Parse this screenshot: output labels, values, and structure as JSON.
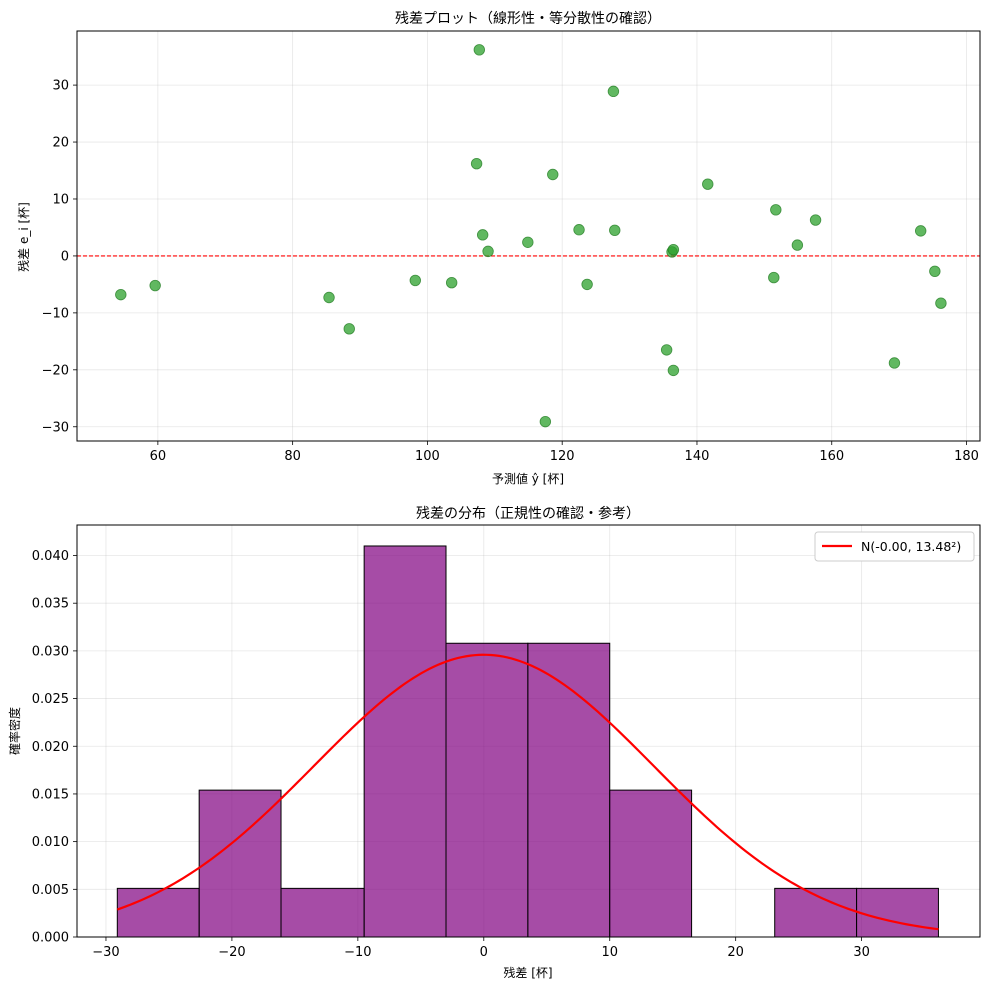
{
  "chart_data": [
    {
      "type": "scatter",
      "title": "残差プロット（線形性・等分散性の確認）",
      "xlabel": "予測値 ŷ [杯]",
      "ylabel": "残差 e_i [杯]",
      "xlim": [
        48,
        182
      ],
      "ylim": [
        -32.5,
        39.5
      ],
      "xticks": [
        60,
        80,
        100,
        120,
        140,
        160,
        180
      ],
      "yticks": [
        -30,
        -20,
        -10,
        0,
        10,
        20,
        30
      ],
      "grid": true,
      "marker_color": "#2ca02c",
      "reference_line": {
        "y": 0,
        "color": "#ff0000",
        "style": "dashed"
      },
      "points": [
        {
          "x": 54.5,
          "y": -6.8
        },
        {
          "x": 59.6,
          "y": -5.2
        },
        {
          "x": 85.4,
          "y": -7.3
        },
        {
          "x": 88.4,
          "y": -12.8
        },
        {
          "x": 98.2,
          "y": -4.3
        },
        {
          "x": 103.6,
          "y": -4.7
        },
        {
          "x": 107.3,
          "y": 16.2
        },
        {
          "x": 107.7,
          "y": 36.2
        },
        {
          "x": 108.2,
          "y": 3.7
        },
        {
          "x": 109.0,
          "y": 0.8
        },
        {
          "x": 114.9,
          "y": 2.4
        },
        {
          "x": 117.5,
          "y": -29.1
        },
        {
          "x": 118.6,
          "y": 14.3
        },
        {
          "x": 122.5,
          "y": 4.6
        },
        {
          "x": 123.7,
          "y": -5.0
        },
        {
          "x": 127.6,
          "y": 28.9
        },
        {
          "x": 127.8,
          "y": 4.5
        },
        {
          "x": 135.5,
          "y": -16.5
        },
        {
          "x": 136.3,
          "y": 0.7
        },
        {
          "x": 136.5,
          "y": 1.1
        },
        {
          "x": 136.5,
          "y": -20.1
        },
        {
          "x": 141.6,
          "y": 12.6
        },
        {
          "x": 151.4,
          "y": -3.8
        },
        {
          "x": 151.7,
          "y": 8.1
        },
        {
          "x": 154.9,
          "y": 1.9
        },
        {
          "x": 157.6,
          "y": 6.3
        },
        {
          "x": 169.3,
          "y": -18.8
        },
        {
          "x": 173.2,
          "y": 4.4
        },
        {
          "x": 175.3,
          "y": -2.7
        },
        {
          "x": 176.2,
          "y": -8.3
        }
      ]
    },
    {
      "type": "histogram",
      "title": "残差の分布（正規性の確認・参考）",
      "xlabel": "残差 [杯]",
      "ylabel": "確率密度",
      "xlim": [
        -32.3,
        39.4
      ],
      "ylim": [
        0,
        0.0432
      ],
      "xticks": [
        -30,
        -20,
        -10,
        0,
        10,
        20,
        30
      ],
      "yticks": [
        0.0,
        0.005,
        0.01,
        0.015,
        0.02,
        0.025,
        0.03,
        0.035,
        0.04
      ],
      "ytick_labels": [
        "0.000",
        "0.005",
        "0.010",
        "0.015",
        "0.020",
        "0.025",
        "0.030",
        "0.035",
        "0.040"
      ],
      "grid": true,
      "bar_color": "#800080",
      "bins": [
        {
          "x0": -29.1,
          "x1": -22.6,
          "density": 0.0051
        },
        {
          "x0": -22.6,
          "x1": -16.1,
          "density": 0.0154
        },
        {
          "x0": -16.1,
          "x1": -9.5,
          "density": 0.0051
        },
        {
          "x0": -9.5,
          "x1": -3.0,
          "density": 0.041
        },
        {
          "x0": -3.0,
          "x1": 3.5,
          "density": 0.0308
        },
        {
          "x0": 3.5,
          "x1": 10.0,
          "density": 0.0308
        },
        {
          "x0": 10.0,
          "x1": 16.5,
          "density": 0.0154
        },
        {
          "x0": 16.5,
          "x1": 23.1,
          "density": 0.0
        },
        {
          "x0": 23.1,
          "x1": 29.6,
          "density": 0.0051
        },
        {
          "x0": 29.6,
          "x1": 36.1,
          "density": 0.0051
        }
      ],
      "normal_curve": {
        "mean": 0.0,
        "sd": 13.48,
        "x_range": [
          -29.1,
          36.1
        ],
        "color": "#ff0000"
      },
      "legend": {
        "label": "N(-0.00, 13.48²)",
        "position": "top-right"
      }
    }
  ]
}
